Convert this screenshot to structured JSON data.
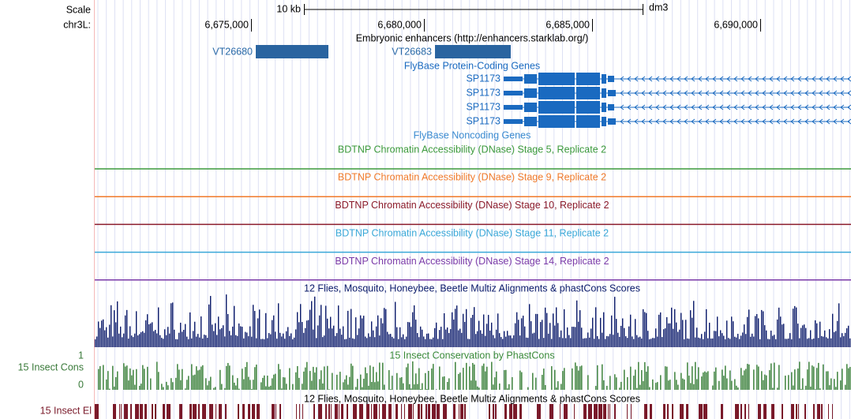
{
  "header": {
    "scale_label": "Scale",
    "chrom_label": "chr3L:",
    "scale_bar": "10 kb",
    "assembly": "dm3",
    "positions": [
      "6,675,000",
      "6,680,000",
      "6,685,000",
      "6,690,000"
    ]
  },
  "enhancers": {
    "title": "Embryonic enhancers (http://enhancers.starklab.org/)",
    "items": [
      "VT26680",
      "VT26683"
    ]
  },
  "protein_genes": {
    "title": "FlyBase Protein-Coding Genes",
    "items": [
      "SP1173",
      "SP1173",
      "SP1173",
      "SP1173"
    ]
  },
  "noncoding_genes": {
    "title": "FlyBase Noncoding Genes"
  },
  "dnase_tracks": [
    {
      "title": "BDTNP Chromatin Accessibility (DNase) Stage 5, Replicate 2",
      "color": "#3c9a3c"
    },
    {
      "title": "BDTNP Chromatin Accessibility (DNase) Stage 9, Replicate 2",
      "color": "#f07a2a"
    },
    {
      "title": "BDTNP Chromatin Accessibility (DNase) Stage 10, Replicate 2",
      "color": "#8a1a2a"
    },
    {
      "title": "BDTNP Chromatin Accessibility (DNase) Stage 11, Replicate 2",
      "color": "#3aa8d8"
    },
    {
      "title": "BDTNP Chromatin Accessibility (DNase) Stage 14, Replicate 2",
      "color": "#7a3aa8"
    }
  ],
  "multiz": {
    "title": "12 Flies, Mosquito, Honeybee, Beetle Multiz Alignments & phastCons Scores"
  },
  "phastcons": {
    "title": "15 Insect Conservation by PhastCons",
    "side_label": "15 Insect Cons",
    "max_label": "1",
    "min_label": "0"
  },
  "elements": {
    "title": "12 Flies, Mosquito, Honeybee, Beetle Multiz Alignments & phastCons Scores",
    "side_label": "15 Insect El"
  }
}
